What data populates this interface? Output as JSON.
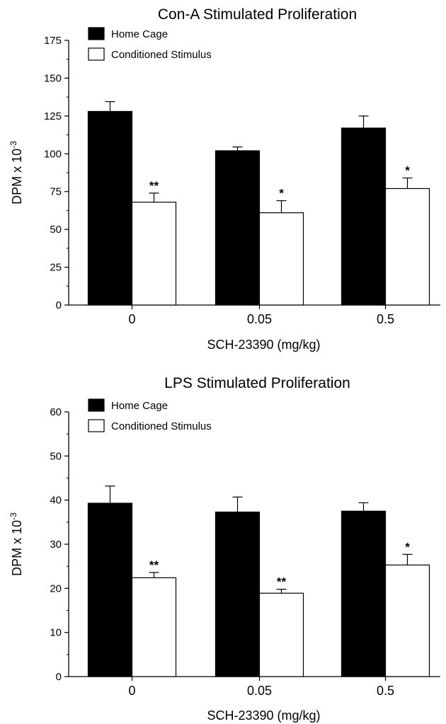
{
  "chart_data": [
    {
      "type": "bar",
      "title": "Con-A Stimulated Proliferation",
      "xlabel": "SCH-23390 (mg/kg)",
      "ylabel": "DPM x 10",
      "ylabel_exponent": "-3",
      "categories": [
        "0",
        "0.05",
        "0.5"
      ],
      "ylim": [
        0,
        175
      ],
      "yticks": [
        0,
        25,
        50,
        75,
        100,
        125,
        150,
        175
      ],
      "legend_position": "top-left",
      "grid": false,
      "series": [
        {
          "name": "Home Cage",
          "color": "#000000",
          "values": [
            128,
            102,
            117
          ],
          "errors": [
            6.5,
            2.5,
            8
          ],
          "significance": [
            "",
            "",
            ""
          ]
        },
        {
          "name": "Conditioned Stimulus",
          "color": "#ffffff",
          "values": [
            68,
            61,
            77
          ],
          "errors": [
            6,
            8,
            7
          ],
          "significance": [
            "**",
            "*",
            "*"
          ]
        }
      ]
    },
    {
      "type": "bar",
      "title": "LPS Stimulated Proliferation",
      "xlabel": "SCH-23390 (mg/kg)",
      "ylabel": "DPM x 10",
      "ylabel_exponent": "-3",
      "categories": [
        "0",
        "0.05",
        "0.5"
      ],
      "ylim": [
        0,
        60
      ],
      "yticks": [
        0,
        10,
        20,
        30,
        40,
        50,
        60
      ],
      "legend_position": "top-left",
      "grid": false,
      "series": [
        {
          "name": "Home Cage",
          "color": "#000000",
          "values": [
            39.3,
            37.3,
            37.5
          ],
          "errors": [
            3.9,
            3.4,
            1.9
          ],
          "significance": [
            "",
            "",
            ""
          ]
        },
        {
          "name": "Conditioned Stimulus",
          "color": "#ffffff",
          "values": [
            22.4,
            18.9,
            25.3
          ],
          "errors": [
            1.2,
            0.9,
            2.4
          ],
          "significance": [
            "**",
            "**",
            "*"
          ]
        }
      ]
    }
  ]
}
